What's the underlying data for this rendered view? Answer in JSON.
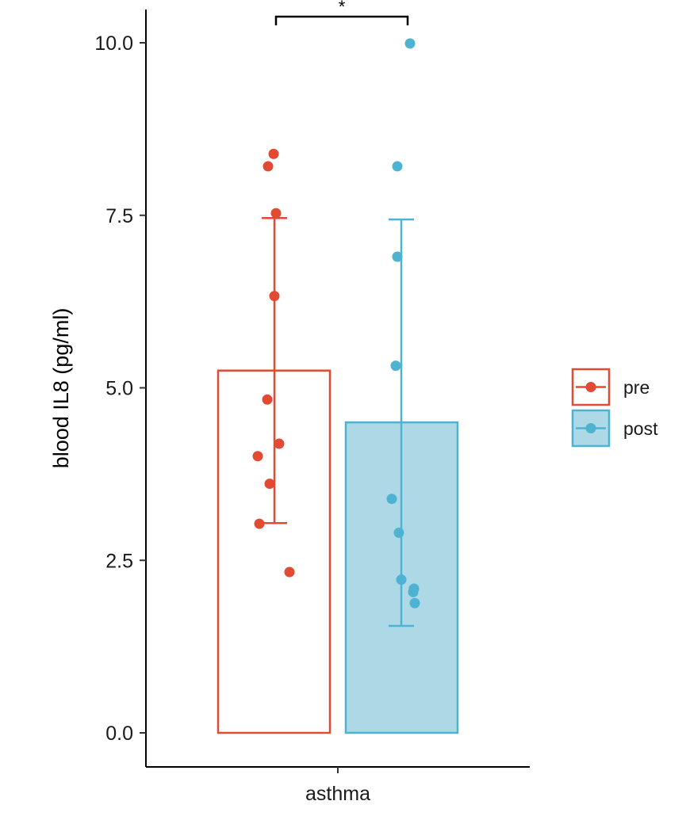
{
  "chart_data": {
    "type": "bar",
    "title": "",
    "xlabel": "",
    "ylabel": "blood IL8 (pg/ml)",
    "categories": [
      "asthma"
    ],
    "ylim": [
      0,
      10.4
    ],
    "yticks": [
      "0.0",
      "2.5",
      "5.0",
      "7.5",
      "10.0"
    ],
    "grid": false,
    "legend_position": "right",
    "series": [
      {
        "name": "pre",
        "color": "#e34a33",
        "fill": "#ffffff",
        "mean": 5.25,
        "error_low": 3.04,
        "error_high": 7.46,
        "points": [
          8.39,
          8.21,
          7.53,
          6.33,
          4.83,
          4.19,
          4.01,
          3.61,
          3.03,
          2.33
        ]
      },
      {
        "name": "post",
        "color": "#4eb3d3",
        "fill": "#add8e6",
        "mean": 4.5,
        "error_low": 1.55,
        "error_high": 7.44,
        "points": [
          9.99,
          8.21,
          6.9,
          5.32,
          3.39,
          2.9,
          2.22,
          2.09,
          2.04,
          1.88
        ]
      }
    ],
    "annotations": [
      {
        "type": "significance",
        "label": "*",
        "between": [
          "pre",
          "post"
        ],
        "y": 10.4
      }
    ]
  }
}
